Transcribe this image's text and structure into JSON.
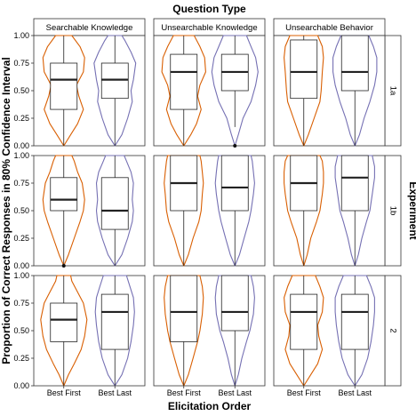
{
  "chart_data": {
    "type": "violin-box",
    "title": "Question Type",
    "xlabel": "Elicitation Order",
    "ylabel": "Proportion of Correct Responses in 80% Confidence Interval",
    "right_title": "Experiment",
    "ylim": [
      0,
      1
    ],
    "y_ticks": [
      "0.00",
      "0.25",
      "0.50",
      "0.75",
      "1.00"
    ],
    "y_tick_values": [
      0,
      0.25,
      0.5,
      0.75,
      1
    ],
    "categories": [
      "Best First",
      "Best Last"
    ],
    "column_facets": [
      "Searchable Knowledge",
      "Unsearchable Knowledge",
      "Unsearchable Behavior"
    ],
    "row_facets": [
      "1a",
      "1b",
      "2"
    ],
    "series_colors": {
      "Best First": "#d95f02",
      "Best Last": "#7570b3"
    },
    "grid": false,
    "panels": [
      [
        {
          "Best First": {
            "q1": 0.33,
            "median": 0.6,
            "q3": 0.75,
            "whisker_low": 0,
            "whisker_high": 1,
            "outliers": [],
            "density": [
              [
                0,
                0.0
              ],
              [
                0.1,
                0.3
              ],
              [
                0.2,
                0.6
              ],
              [
                0.33,
                0.85
              ],
              [
                0.45,
                0.65
              ],
              [
                0.55,
                0.55
              ],
              [
                0.67,
                0.85
              ],
              [
                0.8,
                0.9
              ],
              [
                0.9,
                0.7
              ],
              [
                1.0,
                0.35
              ]
            ]
          },
          "Best Last": {
            "q1": 0.43,
            "median": 0.6,
            "q3": 0.75,
            "whisker_low": 0,
            "whisker_high": 1,
            "outliers": [],
            "density": [
              [
                0,
                0.0
              ],
              [
                0.1,
                0.3
              ],
              [
                0.25,
                0.55
              ],
              [
                0.4,
                0.75
              ],
              [
                0.5,
                0.7
              ],
              [
                0.6,
                0.8
              ],
              [
                0.75,
                0.9
              ],
              [
                0.85,
                0.7
              ],
              [
                0.95,
                0.45
              ],
              [
                1.0,
                0.3
              ]
            ]
          }
        },
        {
          "Best First": {
            "q1": 0.33,
            "median": 0.67,
            "q3": 0.83,
            "whisker_low": 0,
            "whisker_high": 1,
            "outliers": [],
            "density": [
              [
                0,
                0.0
              ],
              [
                0.1,
                0.3
              ],
              [
                0.2,
                0.55
              ],
              [
                0.33,
                0.75
              ],
              [
                0.45,
                0.6
              ],
              [
                0.55,
                0.7
              ],
              [
                0.67,
                0.95
              ],
              [
                0.8,
                0.9
              ],
              [
                0.9,
                0.7
              ],
              [
                1.0,
                0.45
              ]
            ]
          },
          "Best Last": {
            "q1": 0.5,
            "median": 0.67,
            "q3": 0.83,
            "whisker_low": 0.17,
            "whisker_high": 1,
            "outliers": [
              0
            ],
            "density": [
              [
                0,
                0.0
              ],
              [
                0.1,
                0.15
              ],
              [
                0.25,
                0.35
              ],
              [
                0.4,
                0.7
              ],
              [
                0.55,
                0.9
              ],
              [
                0.67,
                1.0
              ],
              [
                0.8,
                0.9
              ],
              [
                0.9,
                0.7
              ],
              [
                1.0,
                0.5
              ]
            ]
          }
        },
        {
          "Best First": {
            "q1": 0.43,
            "median": 0.67,
            "q3": 0.96,
            "whisker_low": 0,
            "whisker_high": 1,
            "outliers": [],
            "density": [
              [
                0,
                0.0
              ],
              [
                0.1,
                0.2
              ],
              [
                0.25,
                0.45
              ],
              [
                0.4,
                0.7
              ],
              [
                0.5,
                0.75
              ],
              [
                0.67,
                0.8
              ],
              [
                0.8,
                0.85
              ],
              [
                0.9,
                0.8
              ],
              [
                1.0,
                0.6
              ]
            ]
          },
          "Best Last": {
            "q1": 0.5,
            "median": 0.67,
            "q3": 1,
            "whisker_low": 0,
            "whisker_high": 1,
            "outliers": [],
            "density": [
              [
                0,
                0.0
              ],
              [
                0.1,
                0.2
              ],
              [
                0.25,
                0.4
              ],
              [
                0.4,
                0.65
              ],
              [
                0.55,
                0.85
              ],
              [
                0.67,
                0.95
              ],
              [
                0.8,
                0.95
              ],
              [
                0.9,
                0.8
              ],
              [
                1.0,
                0.6
              ]
            ]
          }
        }
      ],
      [
        {
          "Best First": {
            "q1": 0.5,
            "median": 0.6,
            "q3": 0.8,
            "whisker_low": 0,
            "whisker_high": 1,
            "outliers": [
              0
            ],
            "density": [
              [
                0,
                0.0
              ],
              [
                0.1,
                0.2
              ],
              [
                0.25,
                0.45
              ],
              [
                0.4,
                0.7
              ],
              [
                0.5,
                0.85
              ],
              [
                0.6,
                0.9
              ],
              [
                0.75,
                0.8
              ],
              [
                0.85,
                0.6
              ],
              [
                0.95,
                0.45
              ],
              [
                1.0,
                0.35
              ]
            ]
          },
          "Best Last": {
            "q1": 0.33,
            "median": 0.5,
            "q3": 0.8,
            "whisker_low": 0,
            "whisker_high": 1,
            "outliers": [],
            "density": [
              [
                0,
                0.0
              ],
              [
                0.1,
                0.3
              ],
              [
                0.25,
                0.55
              ],
              [
                0.4,
                0.75
              ],
              [
                0.5,
                0.8
              ],
              [
                0.6,
                0.75
              ],
              [
                0.75,
                0.8
              ],
              [
                0.85,
                0.7
              ],
              [
                0.95,
                0.5
              ],
              [
                1.0,
                0.4
              ]
            ]
          }
        },
        {
          "Best First": {
            "q1": 0.5,
            "median": 0.75,
            "q3": 1,
            "whisker_low": 0,
            "whisker_high": 1,
            "outliers": [],
            "density": [
              [
                0,
                0.0
              ],
              [
                0.1,
                0.2
              ],
              [
                0.25,
                0.4
              ],
              [
                0.4,
                0.65
              ],
              [
                0.5,
                0.75
              ],
              [
                0.65,
                0.8
              ],
              [
                0.75,
                0.85
              ],
              [
                0.85,
                0.8
              ],
              [
                0.95,
                0.75
              ],
              [
                1.0,
                0.7
              ]
            ]
          },
          "Best Last": {
            "q1": 0.5,
            "median": 0.71,
            "q3": 1,
            "whisker_low": 0,
            "whisker_high": 1,
            "outliers": [],
            "density": [
              [
                0,
                0.0
              ],
              [
                0.1,
                0.2
              ],
              [
                0.25,
                0.4
              ],
              [
                0.4,
                0.6
              ],
              [
                0.5,
                0.7
              ],
              [
                0.65,
                0.8
              ],
              [
                0.75,
                0.85
              ],
              [
                0.85,
                0.8
              ],
              [
                0.95,
                0.75
              ],
              [
                1.0,
                0.7
              ]
            ]
          }
        },
        {
          "Best First": {
            "q1": 0.5,
            "median": 0.75,
            "q3": 1,
            "whisker_low": 0,
            "whisker_high": 1,
            "outliers": [],
            "density": [
              [
                0,
                0.0
              ],
              [
                0.1,
                0.15
              ],
              [
                0.25,
                0.3
              ],
              [
                0.4,
                0.55
              ],
              [
                0.5,
                0.7
              ],
              [
                0.65,
                0.8
              ],
              [
                0.75,
                0.85
              ],
              [
                0.85,
                0.85
              ],
              [
                0.95,
                0.8
              ],
              [
                1.0,
                0.7
              ]
            ]
          },
          "Best Last": {
            "q1": 0.5,
            "median": 0.8,
            "q3": 1,
            "whisker_low": 0,
            "whisker_high": 1,
            "outliers": [],
            "density": [
              [
                0,
                0.0
              ],
              [
                0.1,
                0.15
              ],
              [
                0.25,
                0.3
              ],
              [
                0.4,
                0.5
              ],
              [
                0.5,
                0.65
              ],
              [
                0.65,
                0.75
              ],
              [
                0.8,
                0.85
              ],
              [
                0.9,
                0.85
              ],
              [
                1.0,
                0.75
              ]
            ]
          }
        }
      ],
      [
        {
          "Best First": {
            "q1": 0.4,
            "median": 0.6,
            "q3": 0.75,
            "whisker_low": 0,
            "whisker_high": 1,
            "outliers": [],
            "density": [
              [
                0,
                0.0
              ],
              [
                0.1,
                0.2
              ],
              [
                0.2,
                0.45
              ],
              [
                0.33,
                0.75
              ],
              [
                0.45,
                0.9
              ],
              [
                0.6,
                1.0
              ],
              [
                0.75,
                0.85
              ],
              [
                0.85,
                0.6
              ],
              [
                0.95,
                0.35
              ],
              [
                1.0,
                0.3
              ]
            ]
          },
          "Best Last": {
            "q1": 0.33,
            "median": 0.67,
            "q3": 0.83,
            "whisker_low": 0,
            "whisker_high": 1,
            "outliers": [],
            "density": [
              [
                0,
                0.0
              ],
              [
                0.1,
                0.3
              ],
              [
                0.25,
                0.55
              ],
              [
                0.4,
                0.7
              ],
              [
                0.55,
                0.8
              ],
              [
                0.67,
                0.85
              ],
              [
                0.8,
                0.8
              ],
              [
                0.9,
                0.65
              ],
              [
                1.0,
                0.5
              ]
            ]
          }
        },
        {
          "Best First": {
            "q1": 0.4,
            "median": 0.67,
            "q3": 1,
            "whisker_low": 0,
            "whisker_high": 1,
            "outliers": [],
            "density": [
              [
                0,
                0.0
              ],
              [
                0.1,
                0.2
              ],
              [
                0.25,
                0.4
              ],
              [
                0.4,
                0.6
              ],
              [
                0.5,
                0.7
              ],
              [
                0.65,
                0.8
              ],
              [
                0.8,
                0.85
              ],
              [
                0.9,
                0.8
              ],
              [
                1.0,
                0.7
              ]
            ]
          },
          "Best Last": {
            "q1": 0.5,
            "median": 0.67,
            "q3": 1,
            "whisker_low": 0,
            "whisker_high": 1,
            "outliers": [],
            "density": [
              [
                0,
                0.0
              ],
              [
                0.1,
                0.15
              ],
              [
                0.25,
                0.3
              ],
              [
                0.4,
                0.5
              ],
              [
                0.5,
                0.65
              ],
              [
                0.65,
                0.8
              ],
              [
                0.8,
                0.85
              ],
              [
                0.9,
                0.8
              ],
              [
                1.0,
                0.7
              ]
            ]
          }
        },
        {
          "Best First": {
            "q1": 0.33,
            "median": 0.67,
            "q3": 0.83,
            "whisker_low": 0,
            "whisker_high": 1,
            "outliers": [],
            "density": [
              [
                0,
                0.0
              ],
              [
                0.1,
                0.3
              ],
              [
                0.2,
                0.6
              ],
              [
                0.33,
                0.8
              ],
              [
                0.45,
                0.65
              ],
              [
                0.55,
                0.6
              ],
              [
                0.67,
                0.8
              ],
              [
                0.8,
                0.85
              ],
              [
                0.9,
                0.7
              ],
              [
                1.0,
                0.5
              ]
            ]
          },
          "Best Last": {
            "q1": 0.33,
            "median": 0.67,
            "q3": 0.83,
            "whisker_low": 0,
            "whisker_high": 1,
            "outliers": [],
            "density": [
              [
                0,
                0.0
              ],
              [
                0.1,
                0.3
              ],
              [
                0.25,
                0.55
              ],
              [
                0.4,
                0.7
              ],
              [
                0.55,
                0.8
              ],
              [
                0.67,
                0.85
              ],
              [
                0.8,
                0.85
              ],
              [
                0.9,
                0.7
              ],
              [
                1.0,
                0.5
              ]
            ]
          }
        }
      ]
    ]
  }
}
